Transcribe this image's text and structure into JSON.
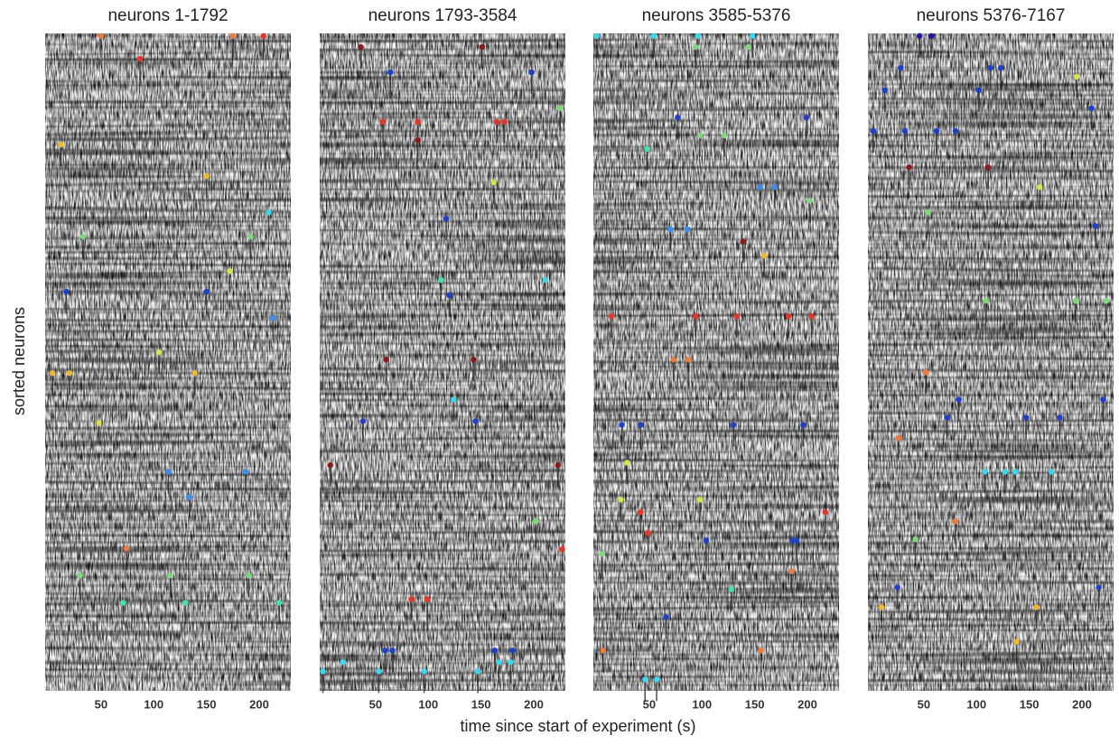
{
  "xlabel": "time since start of experiment (s)",
  "ylabel": "sorted neurons",
  "chart_data": [
    {
      "type": "scatter",
      "title": "neurons 1-1792",
      "xlim": [
        -3,
        230
      ],
      "xticks": [
        50,
        100,
        150,
        200
      ],
      "ylim": [
        1792,
        0
      ],
      "x": [
        50,
        87,
        175,
        204,
        12,
        150,
        209,
        33,
        192,
        172,
        17,
        150,
        213,
        105,
        4,
        20,
        139,
        48,
        114,
        187,
        134,
        74,
        30,
        116,
        190,
        71,
        130,
        219
      ],
      "y": [
        7,
        69,
        7,
        7,
        303,
        389,
        488,
        554,
        554,
        648,
        704,
        704,
        776,
        869,
        926,
        926,
        926,
        1062,
        1195,
        1195,
        1264,
        1404,
        1478,
        1478,
        1478,
        1552,
        1552,
        1552
      ],
      "colors": [
        "#f07a3a",
        "#e8352a",
        "#f07a3a",
        "#e8352a",
        "#f2b830",
        "#f2b830",
        "#3ad8ec",
        "#7ed97a",
        "#7ed97a",
        "#d6e34a",
        "#2040c8",
        "#2040c8",
        "#3a8ef0",
        "#d6e34a",
        "#f2b830",
        "#f2b830",
        "#f2b830",
        "#d6e34a",
        "#3a8ef0",
        "#3a8ef0",
        "#3a8ef0",
        "#f07a3a",
        "#7ed97a",
        "#7ed97a",
        "#7ed97a",
        "#43e0b0",
        "#43e0b0",
        "#43e0b0"
      ]
    },
    {
      "type": "scatter",
      "title": "neurons 1793-3584",
      "xlim": [
        -3,
        230
      ],
      "xticks": [
        50,
        100,
        150,
        200
      ],
      "ylim": [
        1792,
        0
      ],
      "x": [
        36,
        64,
        151,
        198,
        225,
        57,
        90,
        90,
        165,
        172,
        162,
        117,
        112,
        120,
        211,
        60,
        143,
        124,
        38,
        145,
        7,
        223,
        202,
        227,
        84,
        99,
        59,
        66,
        163,
        180,
        19,
        167,
        178,
        0,
        53,
        96,
        147
      ],
      "y": [
        37,
        106,
        37,
        106,
        204,
        241,
        241,
        291,
        241,
        241,
        406,
        505,
        672,
        714,
        672,
        889,
        889,
        998,
        1057,
        1057,
        1177,
        1177,
        1330,
        1406,
        1542,
        1542,
        1682,
        1682,
        1682,
        1682,
        1714,
        1714,
        1714,
        1739,
        1739,
        1739,
        1739
      ],
      "colors": [
        "#8b1a1a",
        "#2040c8",
        "#8b1a1a",
        "#2040c8",
        "#7ed97a",
        "#e8352a",
        "#e8352a",
        "#8b1a1a",
        "#e8352a",
        "#e8352a",
        "#d6e34a",
        "#2040c8",
        "#43e0b0",
        "#2040c8",
        "#3ad8ec",
        "#8b1a1a",
        "#8b1a1a",
        "#3ad8ec",
        "#2040c8",
        "#2040c8",
        "#8b1a1a",
        "#8b1a1a",
        "#7ed97a",
        "#e8352a",
        "#e8352a",
        "#e8352a",
        "#2040c8",
        "#2040c8",
        "#2040c8",
        "#2040c8",
        "#3ad8ec",
        "#3ad8ec",
        "#3ad8ec",
        "#3ad8ec",
        "#3ad8ec",
        "#3ad8ec",
        "#3ad8ec"
      ]
    },
    {
      "type": "scatter",
      "title": "neurons 3585-5376",
      "xlim": [
        -3,
        230
      ],
      "xticks": [
        50,
        100,
        150,
        200
      ],
      "ylim": [
        1792,
        0
      ],
      "x": [
        0,
        54,
        96,
        148,
        94,
        144,
        77,
        199,
        98,
        48,
        121,
        155,
        169,
        202,
        70,
        86,
        139,
        159,
        14,
        94,
        133,
        182,
        204,
        73,
        87,
        24,
        42,
        130,
        196,
        29,
        23,
        98,
        42,
        49,
        217,
        104,
        186,
        190,
        5,
        185,
        128,
        66,
        6,
        156,
        46,
        57
      ],
      "y": [
        7,
        7,
        7,
        7,
        37,
        37,
        229,
        229,
        278,
        315,
        278,
        419,
        419,
        456,
        534,
        534,
        567,
        606,
        771,
        771,
        771,
        771,
        771,
        889,
        889,
        1067,
        1067,
        1067,
        1067,
        1170,
        1271,
        1271,
        1305,
        1362,
        1305,
        1382,
        1382,
        1382,
        1419,
        1466,
        1515,
        1591,
        1682,
        1682,
        1761,
        1761
      ],
      "colors": [
        "#3ad8ec",
        "#3ad8ec",
        "#3ad8ec",
        "#3ad8ec",
        "#7ed97a",
        "#7ed97a",
        "#2040c8",
        "#2040c8",
        "#7ed97a",
        "#43e0b0",
        "#7ed97a",
        "#3a8ef0",
        "#3a8ef0",
        "#7ed97a",
        "#3a8ef0",
        "#3a8ef0",
        "#8b1a1a",
        "#f2b830",
        "#e8352a",
        "#e8352a",
        "#e8352a",
        "#e8352a",
        "#e8352a",
        "#f07a3a",
        "#f07a3a",
        "#2040c8",
        "#2040c8",
        "#2040c8",
        "#2040c8",
        "#d6e34a",
        "#d6e34a",
        "#d6e34a",
        "#e8352a",
        "#e8352a",
        "#e8352a",
        "#2040c8",
        "#2040c8",
        "#2040c8",
        "#7ed97a",
        "#f07a3a",
        "#43e0b0",
        "#2040c8",
        "#f07a3a",
        "#f07a3a",
        "#3ad8ec",
        "#3ad8ec"
      ]
    },
    {
      "type": "scatter",
      "title": "neurons 5376-7167",
      "xlim": [
        -3,
        230
      ],
      "xticks": [
        50,
        100,
        150,
        200
      ],
      "ylim": [
        1792,
        0
      ],
      "x": [
        46,
        57,
        28,
        113,
        123,
        195,
        13,
        102,
        209,
        2,
        32,
        62,
        80,
        36,
        111,
        160,
        54,
        213,
        109,
        194,
        223,
        52,
        83,
        72,
        147,
        179,
        220,
        26,
        108,
        127,
        137,
        171,
        80,
        42,
        25,
        10,
        157,
        216,
        138
      ],
      "y": [
        7,
        7,
        94,
        94,
        94,
        118,
        155,
        155,
        204,
        266,
        266,
        266,
        266,
        365,
        365,
        419,
        488,
        525,
        729,
        729,
        729,
        924,
        998,
        1047,
        1047,
        1047,
        998,
        1103,
        1195,
        1195,
        1195,
        1195,
        1330,
        1379,
        1510,
        1564,
        1564,
        1510,
        1658
      ],
      "colors": [
        "#1a1a9a",
        "#1a1a9a",
        "#2040c8",
        "#2040c8",
        "#2040c8",
        "#d6e34a",
        "#2040c8",
        "#2040c8",
        "#2040c8",
        "#2040c8",
        "#2040c8",
        "#2040c8",
        "#2040c8",
        "#8b1a1a",
        "#8b1a1a",
        "#d6e34a",
        "#7ed97a",
        "#2040c8",
        "#7ed97a",
        "#7ed97a",
        "#7ed97a",
        "#f07a3a",
        "#2040c8",
        "#2040c8",
        "#2040c8",
        "#2040c8",
        "#2040c8",
        "#f07a3a",
        "#3ad8ec",
        "#3ad8ec",
        "#3ad8ec",
        "#3ad8ec",
        "#f07a3a",
        "#7ed97a",
        "#2040c8",
        "#f2b830",
        "#f2b830",
        "#2040c8",
        "#f2b830"
      ]
    }
  ]
}
